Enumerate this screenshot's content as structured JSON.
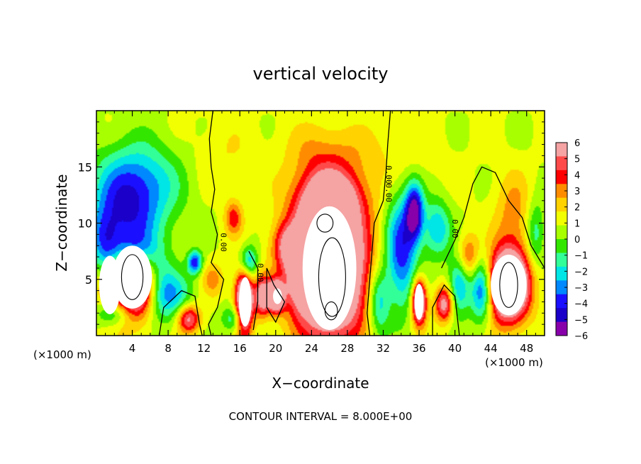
{
  "chart_data": {
    "type": "heatmap",
    "title": "vertical velocity",
    "xlabel": "X−coordinate",
    "ylabel": "Z−coordinate",
    "x_unit": "(×1000 m)",
    "x_unit_right": "(×1000 m)",
    "xlim": [
      0,
      50
    ],
    "ylim": [
      0,
      20
    ],
    "x_ticks": [
      4,
      8,
      12,
      16,
      20,
      24,
      28,
      32,
      36,
      40,
      44,
      48
    ],
    "y_ticks": [
      5,
      10,
      15
    ],
    "colorbar": {
      "range": [
        -6,
        6
      ],
      "labels": [
        "6",
        "5",
        "4",
        "3",
        "2",
        "1",
        "0",
        "−1",
        "−2",
        "−3",
        "−4",
        "−5",
        "−6"
      ],
      "colors": [
        "#f5a3a3",
        "#ff4a4a",
        "#ff0000",
        "#ff8c00",
        "#ffd200",
        "#f2ff00",
        "#a8ff00",
        "#33e600",
        "#33ff99",
        "#00e5e5",
        "#0088ff",
        "#1a10ff",
        "#1a00c8",
        "#8800aa"
      ]
    },
    "contour_labels": [
      "0.00",
      "0.00",
      "0.00",
      "0.00",
      "0.00"
    ],
    "footer": "CONTOUR INTERVAL = 8.000E+00",
    "features": [
      {
        "x": 4.0,
        "z": 5.0,
        "w": 10,
        "rx": 3.0,
        "rz": 3.3
      },
      {
        "x": 4.2,
        "z": 7.0,
        "w": -6,
        "rx": 2.8,
        "rz": 2.2
      },
      {
        "x": 3.5,
        "z": 10.5,
        "w": -4.5,
        "rx": 4.0,
        "rz": 4.5
      },
      {
        "x": 5.0,
        "z": 14.0,
        "w": -2.5,
        "rx": 5.0,
        "rz": 3.5
      },
      {
        "x": 1.0,
        "z": 8.0,
        "w": -3,
        "rx": 1.6,
        "rz": 3.0
      },
      {
        "x": 2.0,
        "z": 2.0,
        "w": -3.5,
        "rx": 2.0,
        "rz": 1.2
      },
      {
        "x": 7.0,
        "z": 4.0,
        "w": -4,
        "rx": 1.8,
        "rz": 2.8
      },
      {
        "x": 9.0,
        "z": 3.5,
        "w": -2.5,
        "rx": 2.0,
        "rz": 2.2
      },
      {
        "x": 10.3,
        "z": 1.5,
        "w": 5,
        "rx": 1.3,
        "rz": 1.3
      },
      {
        "x": 11.0,
        "z": 6.5,
        "w": -5,
        "rx": 0.8,
        "rz": 1.0
      },
      {
        "x": 13.0,
        "z": 5.0,
        "w": 2,
        "rx": 1.2,
        "rz": 1.5
      },
      {
        "x": 15.5,
        "z": 1.5,
        "w": -3,
        "rx": 1.4,
        "rz": 1.2
      },
      {
        "x": 16.5,
        "z": 3.0,
        "w": 9,
        "rx": 1.0,
        "rz": 2.8
      },
      {
        "x": 17.0,
        "z": 6.5,
        "w": -4,
        "rx": 1.0,
        "rz": 1.5
      },
      {
        "x": 15.3,
        "z": 10.5,
        "w": 3,
        "rx": 1.0,
        "rz": 1.6
      },
      {
        "x": 18.5,
        "z": 3.5,
        "w": 5,
        "rx": 0.8,
        "rz": 1.8
      },
      {
        "x": 20.0,
        "z": 3.5,
        "w": 9,
        "rx": 0.9,
        "rz": 1.3
      },
      {
        "x": 21.0,
        "z": 8.0,
        "w": 3,
        "rx": 1.5,
        "rz": 2.0
      },
      {
        "x": 22.5,
        "z": 6.0,
        "w": 4,
        "rx": 1.2,
        "rz": 3.0
      },
      {
        "x": 26.0,
        "z": 6.0,
        "w": 11,
        "rx": 4.0,
        "rz": 6.0
      },
      {
        "x": 26.0,
        "z": 12.0,
        "w": 5,
        "rx": 3.5,
        "rz": 2.5
      },
      {
        "x": 24.8,
        "z": 5.5,
        "w": -12,
        "rx": 0.9,
        "rz": 1.3
      },
      {
        "x": 25.0,
        "z": 16.0,
        "w": 1.5,
        "rx": 4.0,
        "rz": 3.0
      },
      {
        "x": 31.5,
        "z": 3.0,
        "w": -3.5,
        "rx": 1.2,
        "rz": 3.0
      },
      {
        "x": 34.0,
        "z": 7.5,
        "w": -5,
        "rx": 1.8,
        "rz": 5.0
      },
      {
        "x": 35.5,
        "z": 11.0,
        "w": -6,
        "rx": 1.0,
        "rz": 2.5
      },
      {
        "x": 36.0,
        "z": 3.0,
        "w": 8,
        "rx": 0.8,
        "rz": 2.0
      },
      {
        "x": 38.8,
        "z": 2.8,
        "w": 5,
        "rx": 1.0,
        "rz": 1.6
      },
      {
        "x": 38.0,
        "z": 9.5,
        "w": -3.5,
        "rx": 1.5,
        "rz": 2.5
      },
      {
        "x": 40.5,
        "z": 4.5,
        "w": -4,
        "rx": 1.2,
        "rz": 2.5
      },
      {
        "x": 41.5,
        "z": 7.0,
        "w": 3,
        "rx": 1.2,
        "rz": 2.0
      },
      {
        "x": 43.0,
        "z": 4.0,
        "w": -5,
        "rx": 1.2,
        "rz": 2.8
      },
      {
        "x": 46.0,
        "z": 4.5,
        "w": 10,
        "rx": 2.3,
        "rz": 3.2
      },
      {
        "x": 46.5,
        "z": 11.0,
        "w": 2,
        "rx": 2.0,
        "rz": 3.5
      },
      {
        "x": 49.0,
        "z": 9.0,
        "w": -2.5,
        "rx": 1.0,
        "rz": 3.0
      },
      {
        "x": 32.0,
        "z": 16.0,
        "w": 0.8,
        "rx": 6.0,
        "rz": 3.0
      },
      {
        "x": 14.0,
        "z": 16.0,
        "w": 0.8,
        "rx": 4.0,
        "rz": 3.0
      }
    ],
    "zero_contours": [
      [
        [
          13.0,
          20.0
        ],
        [
          12.6,
          17.5
        ],
        [
          12.8,
          15.0
        ],
        [
          13.2,
          13.0
        ],
        [
          12.8,
          11.0
        ],
        [
          13.5,
          9.0
        ],
        [
          13.2,
          7.5
        ],
        [
          12.8,
          6.5
        ],
        [
          14.2,
          5.0
        ],
        [
          13.5,
          2.5
        ],
        [
          12.5,
          1.0
        ],
        [
          12.8,
          0.0
        ]
      ],
      [
        [
          32.8,
          20.0
        ],
        [
          32.5,
          17.0
        ],
        [
          32.3,
          14.5
        ],
        [
          32.0,
          12.0
        ],
        [
          31.0,
          10.0
        ],
        [
          30.8,
          8.0
        ],
        [
          30.5,
          5.0
        ],
        [
          30.2,
          2.0
        ],
        [
          30.5,
          0.0
        ]
      ],
      [
        [
          17.0,
          7.5
        ],
        [
          18.0,
          6.0
        ],
        [
          18.0,
          3.0
        ],
        [
          17.5,
          0.5
        ]
      ],
      [
        [
          19.0,
          6.0
        ],
        [
          19.8,
          4.5
        ],
        [
          21.0,
          3.0
        ],
        [
          20.0,
          1.2
        ],
        [
          19.0,
          2.5
        ],
        [
          19.0,
          6.0
        ]
      ],
      [
        [
          7.0,
          0.0
        ],
        [
          7.5,
          2.5
        ],
        [
          9.5,
          4.0
        ],
        [
          11.0,
          3.5
        ],
        [
          11.5,
          1.0
        ],
        [
          11.8,
          0.0
        ]
      ],
      [
        [
          38.5,
          6.0
        ],
        [
          40.0,
          8.5
        ],
        [
          41.0,
          10.5
        ],
        [
          42.0,
          13.5
        ],
        [
          43.0,
          15.0
        ],
        [
          44.5,
          14.5
        ],
        [
          46.0,
          12.0
        ],
        [
          47.5,
          10.5
        ],
        [
          48.5,
          8.0
        ],
        [
          50.0,
          6.0
        ]
      ],
      [
        [
          37.5,
          0.0
        ],
        [
          37.5,
          2.5
        ],
        [
          38.8,
          4.5
        ],
        [
          40.0,
          3.5
        ],
        [
          40.5,
          0.0
        ]
      ]
    ],
    "white_regions": [
      [
        4.0,
        5.2,
        2.2,
        2.8
      ],
      [
        1.5,
        4.5,
        1.2,
        2.6
      ],
      [
        26.0,
        6.0,
        3.0,
        5.5
      ],
      [
        46.0,
        4.5,
        2.0,
        2.7
      ],
      [
        16.6,
        3.0,
        0.7,
        2.2
      ],
      [
        36.0,
        3.0,
        0.5,
        1.6
      ],
      [
        20.2,
        3.5,
        0.5,
        0.7
      ]
    ],
    "inner_contours": [
      [
        26.3,
        5.2,
        1.5,
        3.5
      ],
      [
        25.5,
        10.0,
        0.9,
        0.8
      ],
      [
        26.2,
        2.2,
        0.7,
        0.8
      ],
      [
        46.0,
        4.5,
        1.0,
        2.0
      ],
      [
        4.0,
        5.2,
        1.2,
        2.0
      ]
    ]
  }
}
